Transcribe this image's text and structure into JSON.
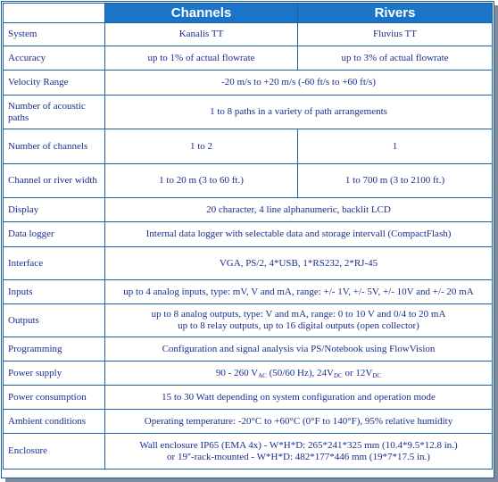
{
  "header": {
    "col1": "",
    "col2": "Channels",
    "col3": "Rivers"
  },
  "rows": [
    {
      "label": "System",
      "channels": "Kanalis TT",
      "rivers": "Fluvius TT"
    },
    {
      "label": "Accuracy",
      "channels": "up to 1% of actual flowrate",
      "rivers": "up to 3% of actual flowrate"
    },
    {
      "label": "Velocity Range",
      "value": "-20 m/s  to +20 m/s (-60 ft/s to +60 ft/s)"
    },
    {
      "label": "Number of acoustic paths",
      "value": "1 to 8 paths in a variety of path arrangements"
    },
    {
      "label": "Number of channels",
      "channels": "1 to 2",
      "rivers": "1"
    },
    {
      "label": "Channel or river width",
      "channels": "1 to 20 m (3 to 60 ft.)",
      "rivers": "1 to 700 m (3 to 2100 ft.)"
    },
    {
      "label": "Display",
      "value": "20 character, 4 line alphanumeric, backlit LCD"
    },
    {
      "label": "Data logger",
      "value": "Internal data logger with selectable data and storage intervall (CompactFlash)"
    },
    {
      "label": "Interface",
      "value": "VGA, PS/2, 4*USB, 1*RS232, 2*RJ-45"
    },
    {
      "label": "Inputs",
      "value": "up to 4 analog inputs, type: mV, V and mA, range: +/- 1V, +/- 5V, +/- 10V and +/- 20 mA"
    },
    {
      "label": "Outputs",
      "value1": "up to 8 analog outputs, type: V and mA, range: 0 to 10 V and 0/4 to 20 mA",
      "value2": "up to 8 relay outputs, up to 16 digital outputs (open collector)"
    },
    {
      "label": "Programming",
      "value": "Configuration and signal analysis via PS/Notebook using FlowVision"
    },
    {
      "label": "Power supply",
      "v_pre": "90 - 260 V",
      "v_sub1": "AC",
      "v_mid": " (50/60 Hz), 24V",
      "v_sub2": "DC",
      "v_or": " or 12V",
      "v_sub3": "DC"
    },
    {
      "label": "Power consumption",
      "value": "15 to 30 Watt depending on system configuration  and operation mode"
    },
    {
      "label": "Ambient conditions",
      "value": "Operating temperature: -20°C to +60°C  (0°F to 140°F), 95% relative humidity"
    },
    {
      "label": "Enclosure",
      "value1": "Wall enclosure IP65 (EMA 4x) - W*H*D: 265*241*325 mm  (10.4*9.5*12.8 in.)",
      "value2": "or 19''-rack-mounted - W*H*D: 482*177*446 mm (19*7*17.5 in.)"
    }
  ]
}
